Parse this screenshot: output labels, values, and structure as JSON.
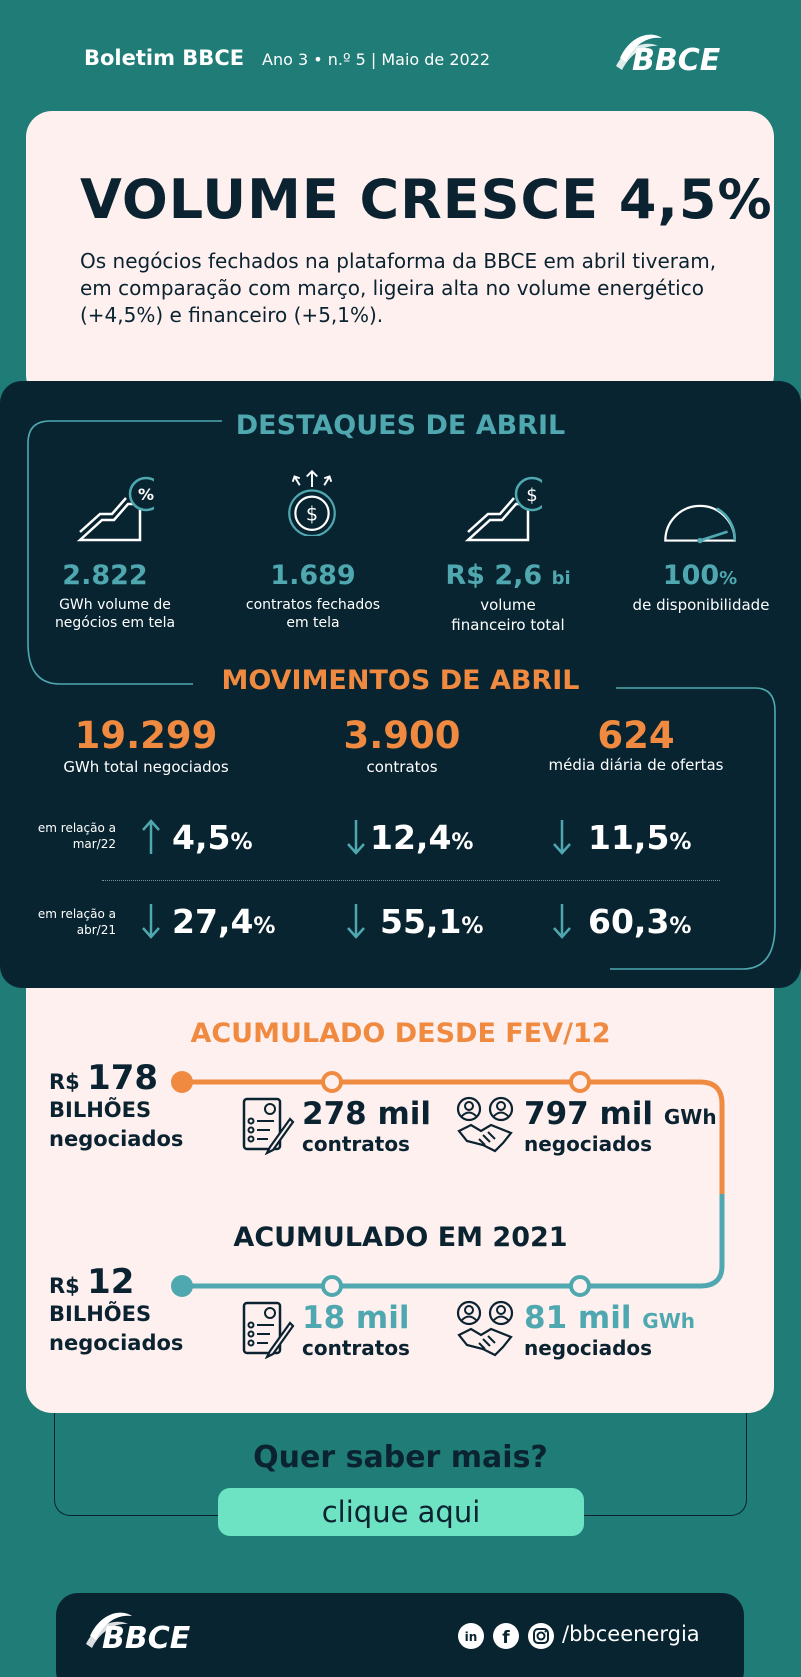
{
  "header": {
    "title": "Boletim BBCE",
    "issue": "Ano 3 • n.º 5 | Maio de 2022",
    "logo_text": "BBCE"
  },
  "intro": {
    "headline": "VOLUME CRESCE 4,5%",
    "text": "Os negócios fechados na plataforma da BBCE em abril tiveram, em comparação com março, ligeira alta no volume energético (+4,5%) e financeiro (+5,1%)."
  },
  "highlights": {
    "title": "DESTAQUES DE ABRIL",
    "items": [
      {
        "icon": "growth-percent-icon",
        "value": "2.822",
        "unit": "",
        "label": "GWh volume de negócios em tela"
      },
      {
        "icon": "dollar-coin-icon",
        "value": "1.689",
        "unit": "",
        "label": "contratos fechados em tela"
      },
      {
        "icon": "growth-dollar-icon",
        "value": "R$ 2,6",
        "unit": "bi",
        "label": "volume financeiro total"
      },
      {
        "icon": "gauge-icon",
        "value": "100",
        "unit": "%",
        "label": "de disponibilidade"
      }
    ]
  },
  "movements": {
    "title": "MOVIMENTOS DE ABRIL",
    "items": [
      {
        "value": "19.299",
        "label": "GWh total negociados"
      },
      {
        "value": "3.900",
        "label": "contratos"
      },
      {
        "value": "624",
        "label": "média diária de ofertas"
      }
    ],
    "rows": [
      {
        "label": "em relação a mar/22",
        "changes": [
          {
            "direction": "up",
            "value": "4,5",
            "unit": "%"
          },
          {
            "direction": "down",
            "value": "12,4",
            "unit": "%"
          },
          {
            "direction": "down",
            "value": "11,5",
            "unit": "%"
          }
        ]
      },
      {
        "label": "em relação a abr/21",
        "changes": [
          {
            "direction": "down",
            "value": "27,4",
            "unit": "%"
          },
          {
            "direction": "down",
            "value": "55,1",
            "unit": "%"
          },
          {
            "direction": "down",
            "value": "60,3",
            "unit": "%"
          }
        ]
      }
    ]
  },
  "accumulated": {
    "title": "ACUMULADO DESDE FEV/12",
    "main_prefix": "R$",
    "main_value": "178",
    "main_line1": "BILHÕES",
    "main_line2": "negociados",
    "contracts_value": "278 mil",
    "contracts_label": "contratos",
    "gwh_value": "797 mil",
    "gwh_unit": "GWh",
    "gwh_label": "negociados"
  },
  "accumulated_2021": {
    "title": "ACUMULADO EM 2021",
    "main_prefix": "R$",
    "main_value": "12",
    "main_line1": "BILHÕES",
    "main_line2": "negociados",
    "contracts_value": "18 mil",
    "contracts_label": "contratos",
    "gwh_value": "81 mil",
    "gwh_unit": "GWh",
    "gwh_label": "negociados"
  },
  "cta": {
    "question": "Quer saber mais?",
    "button": "clique aqui"
  },
  "footer": {
    "logo_text": "BBCE",
    "social_icons": [
      "linkedin-icon",
      "facebook-icon",
      "instagram-icon"
    ],
    "handle": "/bbceenergia"
  },
  "colors": {
    "background": "#1f7c77",
    "dark": "#082430",
    "teal": "#4fa8b0",
    "orange": "#f08a40",
    "card": "#fdf0ef",
    "button": "#6de3c3"
  }
}
